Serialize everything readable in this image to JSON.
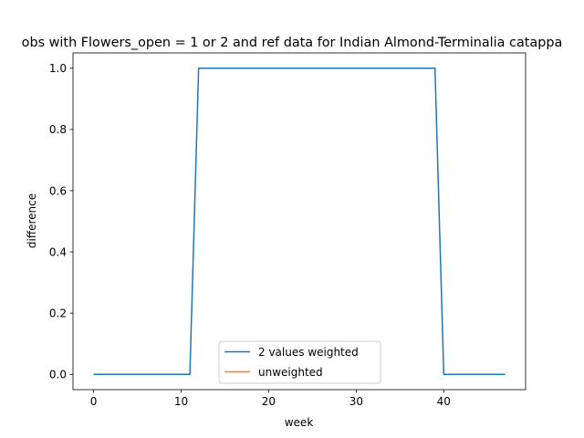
{
  "chart_data": {
    "type": "line",
    "title": "obs with Flowers_open = 1 or 2 and ref data for Indian Almond-Terminalia catappa",
    "xlabel": "week",
    "ylabel": "difference",
    "xlim": [
      -2.35,
      49.35
    ],
    "ylim": [
      -0.05,
      1.05
    ],
    "xticks": [
      0,
      10,
      20,
      30,
      40
    ],
    "yticks": [
      0.0,
      0.2,
      0.4,
      0.6,
      0.8,
      1.0
    ],
    "xtick_labels": [
      "0",
      "10",
      "20",
      "30",
      "40"
    ],
    "ytick_labels": [
      "0.0",
      "0.2",
      "0.4",
      "0.6",
      "0.8",
      "1.0"
    ],
    "legend_position": "lower-center",
    "grid": false,
    "series": [
      {
        "name": "2 values weighted",
        "color": "#1f77b4",
        "x": [
          0,
          1,
          2,
          3,
          4,
          5,
          6,
          7,
          8,
          9,
          10,
          11,
          12,
          13,
          14,
          15,
          16,
          17,
          18,
          19,
          20,
          21,
          22,
          23,
          24,
          25,
          26,
          27,
          28,
          29,
          30,
          31,
          32,
          33,
          34,
          35,
          36,
          37,
          38,
          39,
          40,
          41,
          42,
          43,
          44,
          45,
          46,
          47
        ],
        "y": [
          0,
          0,
          0,
          0,
          0,
          0,
          0,
          0,
          0,
          0,
          0,
          0,
          1,
          1,
          1,
          1,
          1,
          1,
          1,
          1,
          1,
          1,
          1,
          1,
          1,
          1,
          1,
          1,
          1,
          1,
          1,
          1,
          1,
          1,
          1,
          1,
          1,
          1,
          1,
          1,
          0,
          0,
          0,
          0,
          0,
          0,
          0,
          0
        ]
      },
      {
        "name": "unweighted",
        "color": "#ff7f0e",
        "x": [],
        "y": []
      }
    ]
  }
}
